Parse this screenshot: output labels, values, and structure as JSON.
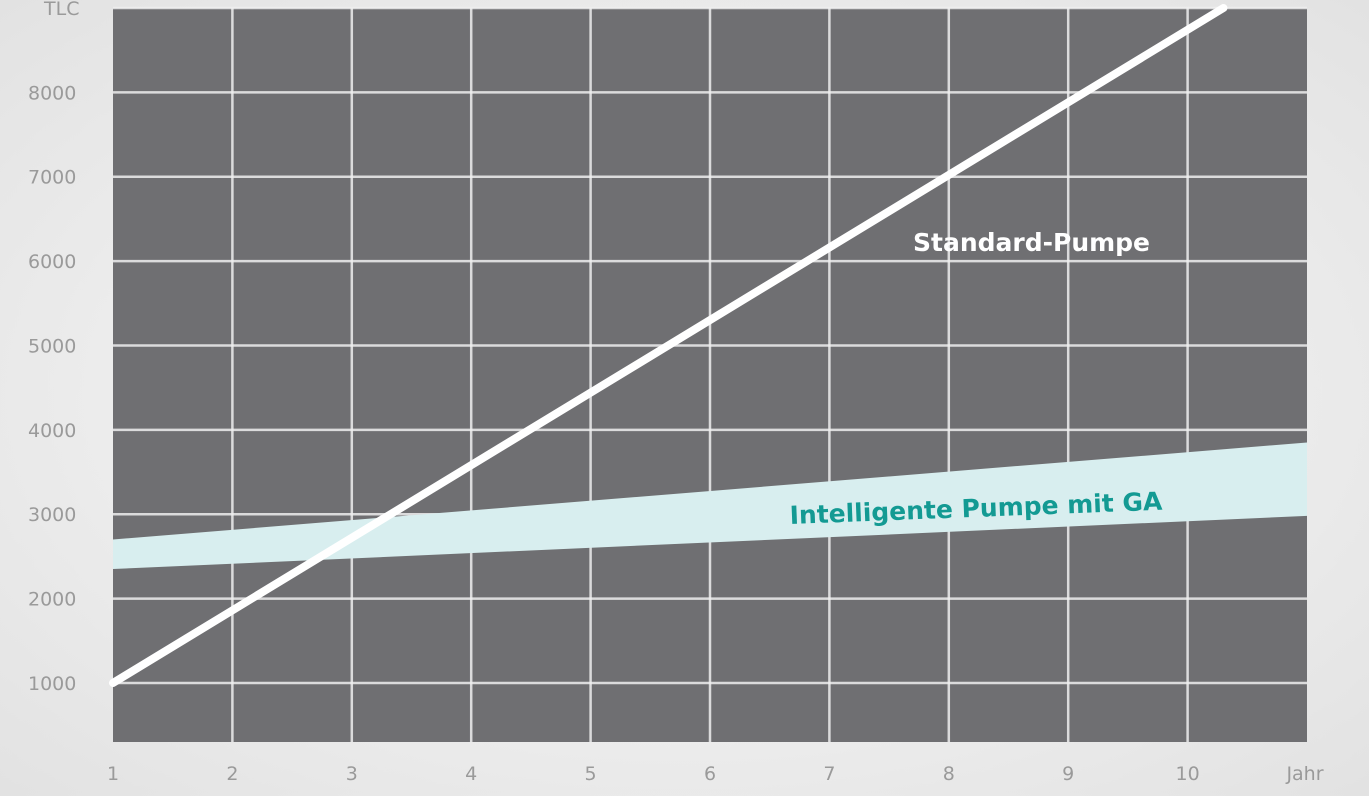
{
  "chart_data": {
    "type": "line",
    "title": "",
    "xlabel": "Jahr",
    "ylabel": "TLC",
    "xlim": [
      1,
      11
    ],
    "ylim": [
      300,
      9000
    ],
    "x_ticks": [
      1,
      2,
      3,
      4,
      5,
      6,
      7,
      8,
      9,
      10
    ],
    "x_tick_labels": [
      "1",
      "2",
      "3",
      "4",
      "5",
      "6",
      "7",
      "8",
      "9",
      "10"
    ],
    "y_ticks": [
      1000,
      2000,
      3000,
      4000,
      5000,
      6000,
      7000,
      8000
    ],
    "y_tick_labels": [
      "1000",
      "2000",
      "3000",
      "4000",
      "5000",
      "6000",
      "7000",
      "8000"
    ],
    "grid": true,
    "series": [
      {
        "name": "Standard-Pumpe",
        "x": [
          1,
          10.3
        ],
        "values": [
          1000,
          9000
        ],
        "color": "#ffffff"
      },
      {
        "name": "Intelligente Pumpe mit GA",
        "type": "band",
        "x": [
          1,
          11
        ],
        "lower": [
          2350,
          2980
        ],
        "upper": [
          2700,
          3850
        ],
        "color": "#d8eeef",
        "label_color": "#139a93"
      }
    ],
    "plot_background": "#6f6f72",
    "grid_color": "#eeeeee"
  }
}
